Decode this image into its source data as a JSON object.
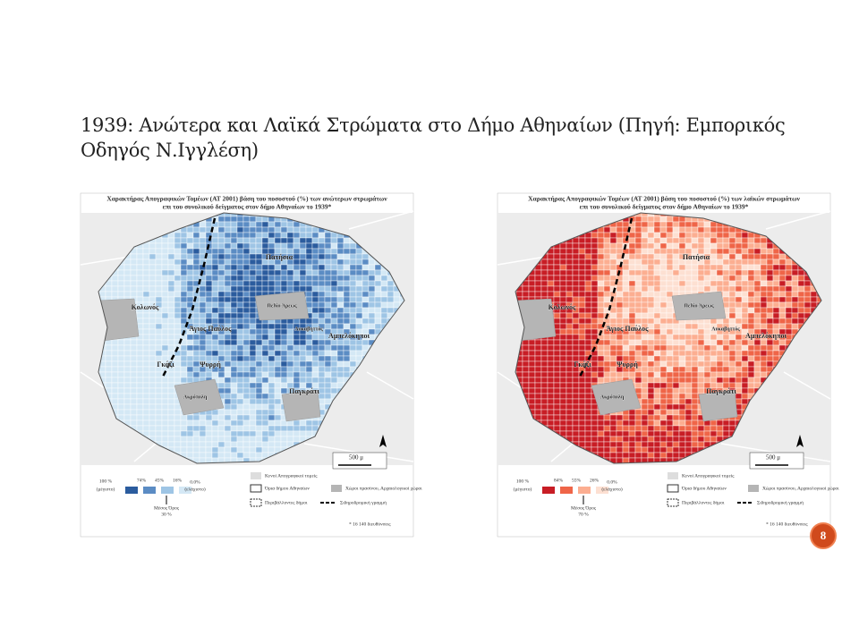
{
  "title_lines": [
    "1939: Ανώτερα και Λαϊκά Στρώματα στο Δήμο Αθηναίων (Πηγή: Εμπορικός",
    "Οδηγός Ν.Ιγγλέση)"
  ],
  "maps": [
    {
      "heading": [
        "Χαρακτήρας Απογραφικών Τομέων (ΑΤ 2001) βάση του ποσοστού (%) των ανώτερων στρωμάτων",
        "επι του συνολικού δείγματος στον δήμο Αθηναίων το 1939*"
      ],
      "colors": [
        "#2b5c9e",
        "#5b8cc4",
        "#9ec5e5",
        "#d4e8f5"
      ],
      "places": [
        "Πατήσια",
        "Κολωνός",
        "Άγιος Παύλος",
        "Αμπελόκηποι",
        "Γκάζι",
        "Ψυρρή",
        "Παγκράτι",
        "Πεδίο Άρεως",
        "Ακρόπολη",
        "Λυκαβηττός"
      ],
      "scale": [
        "100 %",
        "(μέγιστο)",
        "74%",
        "45%",
        "16%",
        "0.0%",
        "(ελάχιστο)"
      ],
      "mean": [
        "Μέσος Όρος",
        "30 %"
      ]
    },
    {
      "heading": [
        "Χαρακτήρας Απογραφικών Τομέων (ΑΤ 2001) βάση του ποσοστού (%) των λαϊκών στρωμάτων",
        "επι του συνολικού δείγματος στον δήμο Αθηναίων το 1939*"
      ],
      "colors": [
        "#c81d25",
        "#ef6548",
        "#fcae91",
        "#fde0d2"
      ],
      "places": [
        "Πατήσια",
        "Κολωνός",
        "Άγιος Παύλος",
        "Αμπελόκηποι",
        "Γκάζι",
        "Ψυρρή",
        "Παγκράτι",
        "Πεδίο Άρεως",
        "Ακρόπολη",
        "Λυκαβηττός"
      ],
      "scale": [
        "100 %",
        "(μέγιστο)",
        "84%",
        "55%",
        "26%",
        "0.0%",
        "(ελάχιστο)"
      ],
      "mean": [
        "Μέσος Όρος",
        "70 %"
      ]
    }
  ],
  "legend_common": [
    "Κενοί Απογραφικοί τομείς",
    "Όρια δήμου Αθηναίων",
    "Περιβάλλοντες δήμοι",
    "Χώροι πρασίνου, Αρχαιολογικοί χώροι",
    "Σιδηροδρομική γραμμή",
    "* 16 140 διευθύνσεις",
    "500 μ"
  ],
  "page_number": "8"
}
